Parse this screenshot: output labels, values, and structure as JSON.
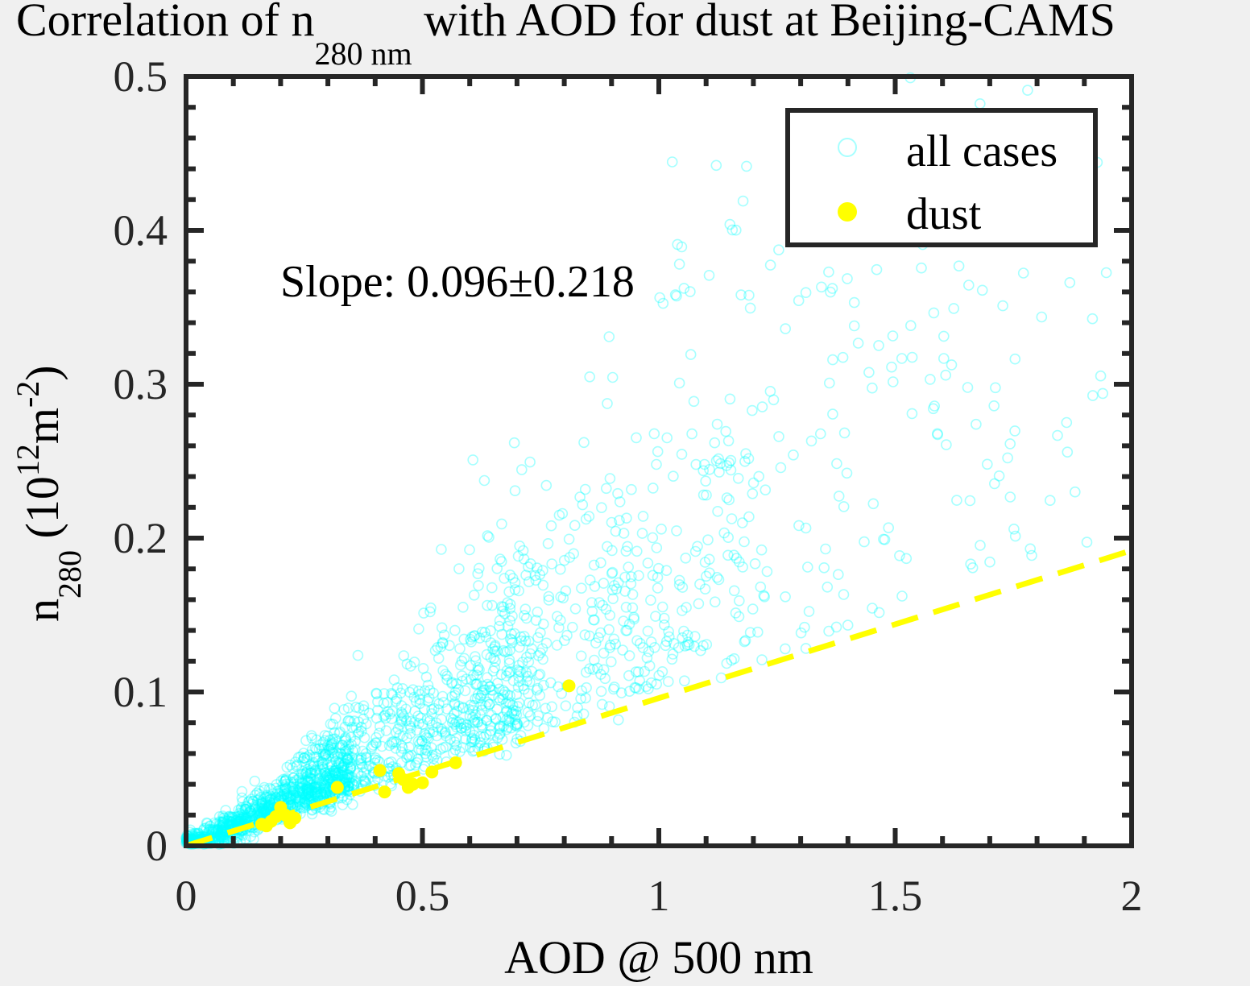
{
  "chart_data": {
    "type": "scatter",
    "title": {
      "prefix": "Correlation of n",
      "subscript": "280 nm",
      "suffix": " with AOD for dust at Beijing-CAMS"
    },
    "xlabel": "AOD @ 500 nm",
    "ylabel": {
      "base": "n",
      "subscript": "280",
      "unit_open": " (10",
      "unit_exp": "12",
      "unit_mid": "m",
      "unit_exp2": "-2",
      "unit_close": ")"
    },
    "xlim": [
      0,
      2
    ],
    "ylim": [
      0,
      0.5
    ],
    "xticks": [
      0,
      0.5,
      1,
      1.5,
      2
    ],
    "xtick_labels": [
      "0",
      "0.5",
      "1",
      "1.5",
      "2"
    ],
    "yticks": [
      0,
      0.1,
      0.2,
      0.3,
      0.4,
      0.5
    ],
    "ytick_labels": [
      "0",
      "0.1",
      "0.2",
      "0.3",
      "0.4",
      "0.5"
    ],
    "grid": false,
    "legend": {
      "placement": "top-right",
      "entries": [
        "all cases",
        "dust"
      ]
    },
    "annotation": "Slope: 0.096±0.218",
    "fit_line": {
      "slope": 0.096,
      "intercept": 0,
      "x_range": [
        0,
        2
      ],
      "style": "dashed",
      "color": "#ffff00"
    },
    "series": [
      {
        "name": "all cases",
        "marker": "open-circle",
        "color": "#00ffff",
        "count": 2200,
        "distribution_note": "dense cluster along y≈0.1·x at low AOD, spreading upward as AOD increases"
      },
      {
        "name": "dust",
        "marker": "filled-circle",
        "color": "#ffff00",
        "points": [
          [
            0.16,
            0.014
          ],
          [
            0.17,
            0.013
          ],
          [
            0.18,
            0.016
          ],
          [
            0.19,
            0.019
          ],
          [
            0.2,
            0.025
          ],
          [
            0.21,
            0.02
          ],
          [
            0.22,
            0.015
          ],
          [
            0.23,
            0.018
          ],
          [
            0.32,
            0.038
          ],
          [
            0.41,
            0.049
          ],
          [
            0.42,
            0.035
          ],
          [
            0.45,
            0.047
          ],
          [
            0.46,
            0.043
          ],
          [
            0.47,
            0.038
          ],
          [
            0.48,
            0.04
          ],
          [
            0.5,
            0.041
          ],
          [
            0.52,
            0.048
          ],
          [
            0.57,
            0.054
          ],
          [
            0.81,
            0.104
          ]
        ]
      }
    ]
  }
}
